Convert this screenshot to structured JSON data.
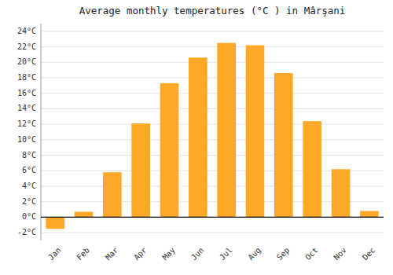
{
  "chart_data": {
    "type": "bar",
    "title": "Average monthly temperatures (°C ) in Mârşani",
    "categories": [
      "Jan",
      "Feb",
      "Mar",
      "Apr",
      "May",
      "Jun",
      "Jul",
      "Aug",
      "Sep",
      "Oct",
      "Nov",
      "Dec"
    ],
    "values": [
      -1.5,
      0.7,
      5.8,
      12.1,
      17.3,
      20.6,
      22.5,
      22.2,
      18.6,
      12.4,
      6.2,
      0.8
    ],
    "color": "#FFA726",
    "ylim": [
      -3,
      25
    ],
    "yticks": [
      {
        "value": -2,
        "label": "-2°C"
      },
      {
        "value": 0,
        "label": "0°C"
      },
      {
        "value": 2,
        "label": "2°C"
      },
      {
        "value": 4,
        "label": "4°C"
      },
      {
        "value": 6,
        "label": "6°C"
      },
      {
        "value": 8,
        "label": "8°C"
      },
      {
        "value": 10,
        "label": "10°C"
      },
      {
        "value": 12,
        "label": "12°C"
      },
      {
        "value": 14,
        "label": "14°C"
      },
      {
        "value": 16,
        "label": "16°C"
      },
      {
        "value": 18,
        "label": "18°C"
      },
      {
        "value": 20,
        "label": "20°C"
      },
      {
        "value": 22,
        "label": "22°C"
      },
      {
        "value": 24,
        "label": "24°C"
      }
    ],
    "grid": true
  }
}
